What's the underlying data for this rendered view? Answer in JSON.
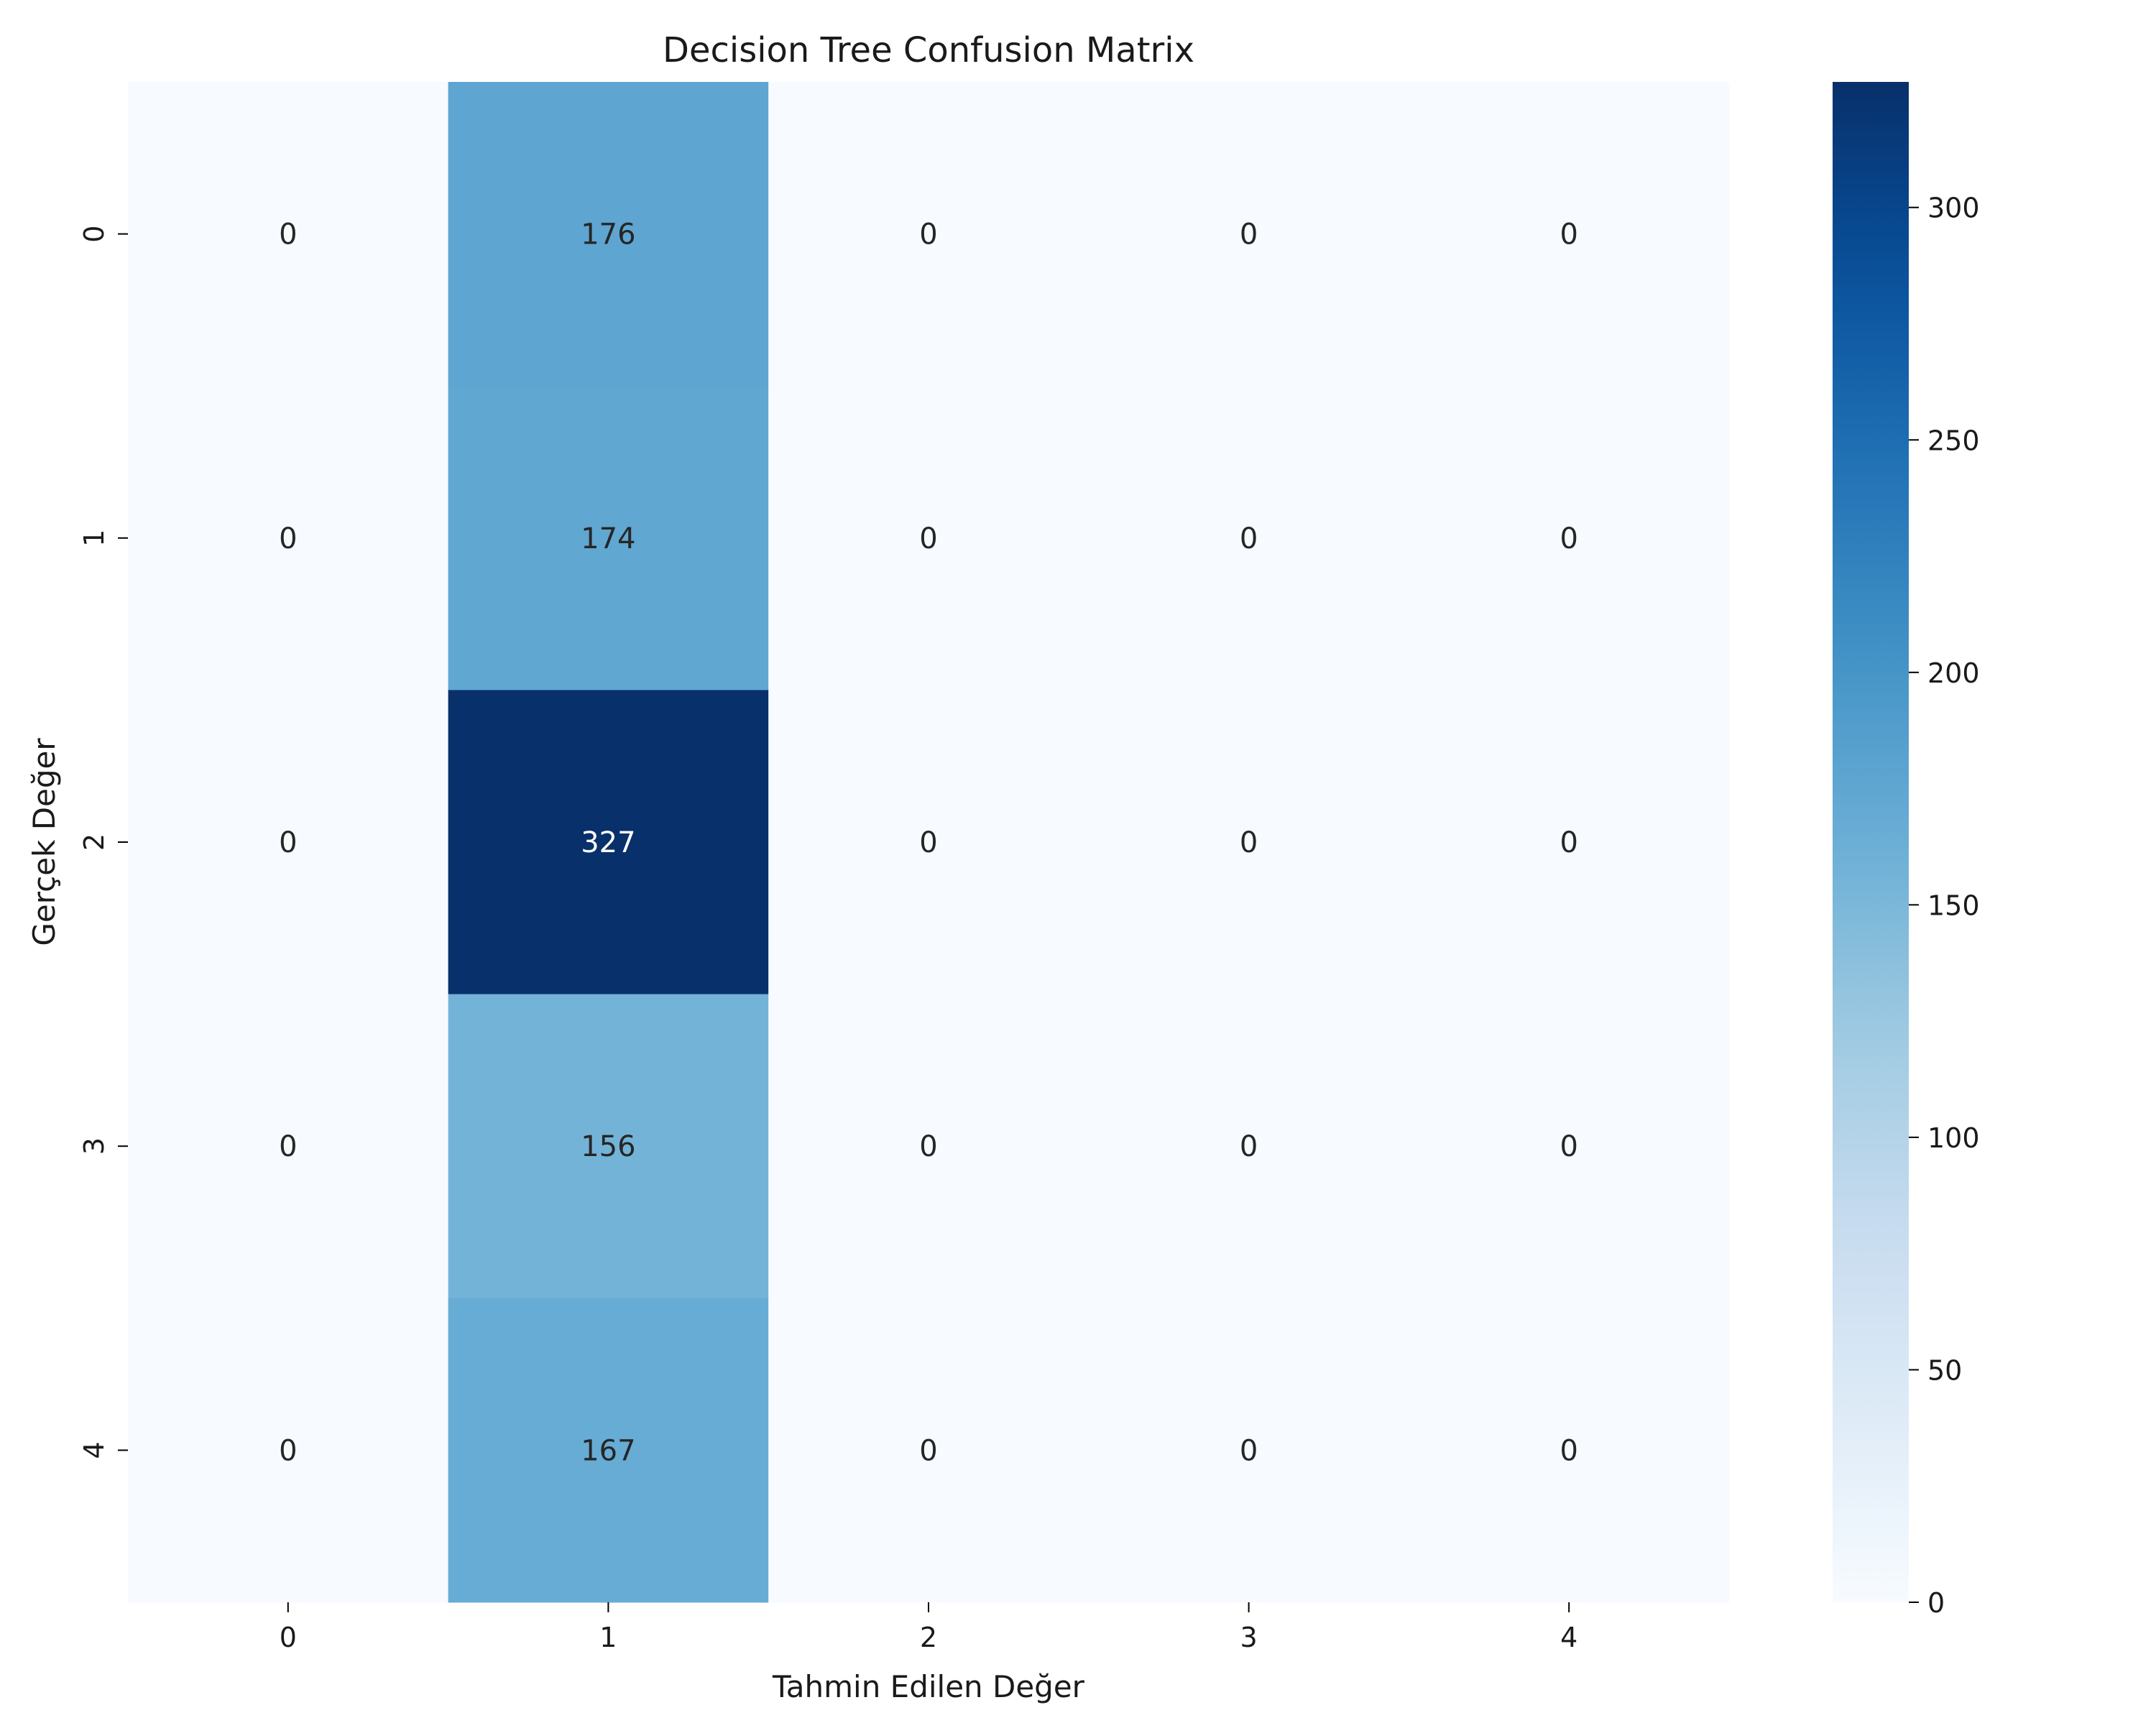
{
  "chart_data": {
    "type": "heatmap",
    "title": "Decision Tree Confusion Matrix",
    "xlabel": "Tahmin Edilen Değer",
    "ylabel": "Gerçek Değer",
    "x_categories": [
      "0",
      "1",
      "2",
      "3",
      "4"
    ],
    "y_categories": [
      "0",
      "1",
      "2",
      "3",
      "4"
    ],
    "values": [
      [
        0,
        176,
        0,
        0,
        0
      ],
      [
        0,
        174,
        0,
        0,
        0
      ],
      [
        0,
        327,
        0,
        0,
        0
      ],
      [
        0,
        156,
        0,
        0,
        0
      ],
      [
        0,
        167,
        0,
        0,
        0
      ]
    ],
    "colormap": "Blues",
    "colorbar": {
      "range": [
        0,
        327
      ],
      "ticks": [
        0,
        50,
        100,
        150,
        200,
        250,
        300
      ]
    },
    "grid": false
  }
}
